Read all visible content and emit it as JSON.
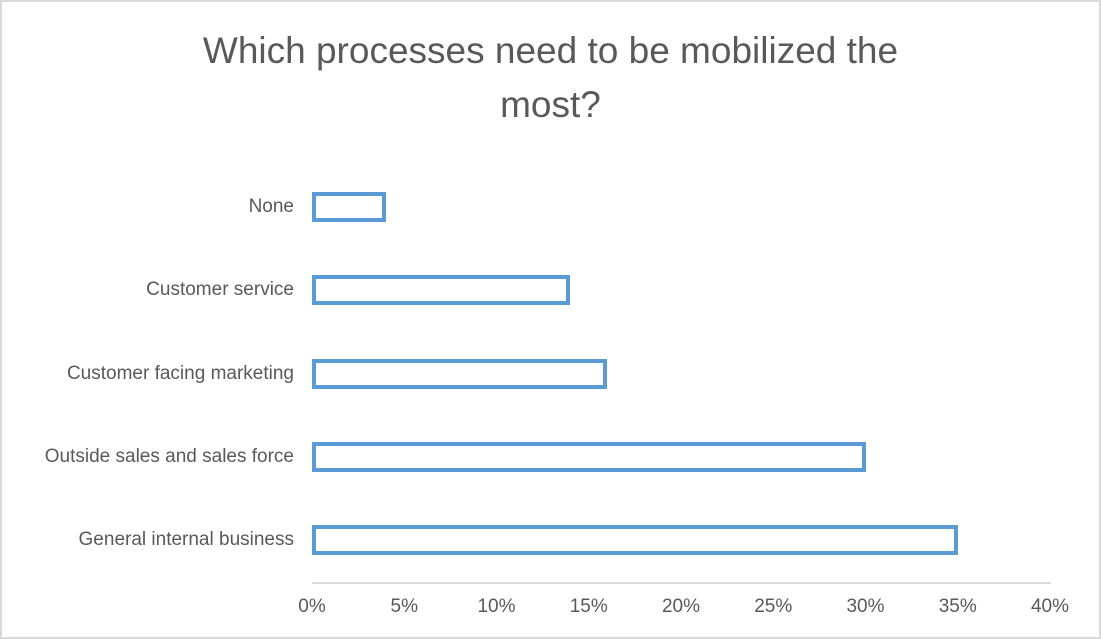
{
  "chart_data": {
    "type": "bar",
    "orientation": "horizontal",
    "title": "Which processes need to be mobilized the most?",
    "categories": [
      "None",
      "Customer service",
      "Customer facing marketing",
      "Outside sales and sales force",
      "General internal business"
    ],
    "values": [
      4,
      14,
      16,
      30,
      35
    ],
    "value_unit": "%",
    "xlabel": "",
    "ylabel": "",
    "xlim": [
      0,
      40
    ],
    "x_ticks": [
      "0%",
      "5%",
      "10%",
      "15%",
      "20%",
      "25%",
      "30%",
      "35%",
      "40%"
    ],
    "grid": false,
    "legend": false,
    "colors": {
      "bar_border": "#5b9bd5",
      "bar_fill": "#ffffff",
      "title_text": "#595959",
      "label_text": "#595959",
      "tick_text": "#595959",
      "axis_line": "#d9d9d9",
      "chart_border": "#d9d9d9",
      "background": "#ffffff"
    }
  }
}
